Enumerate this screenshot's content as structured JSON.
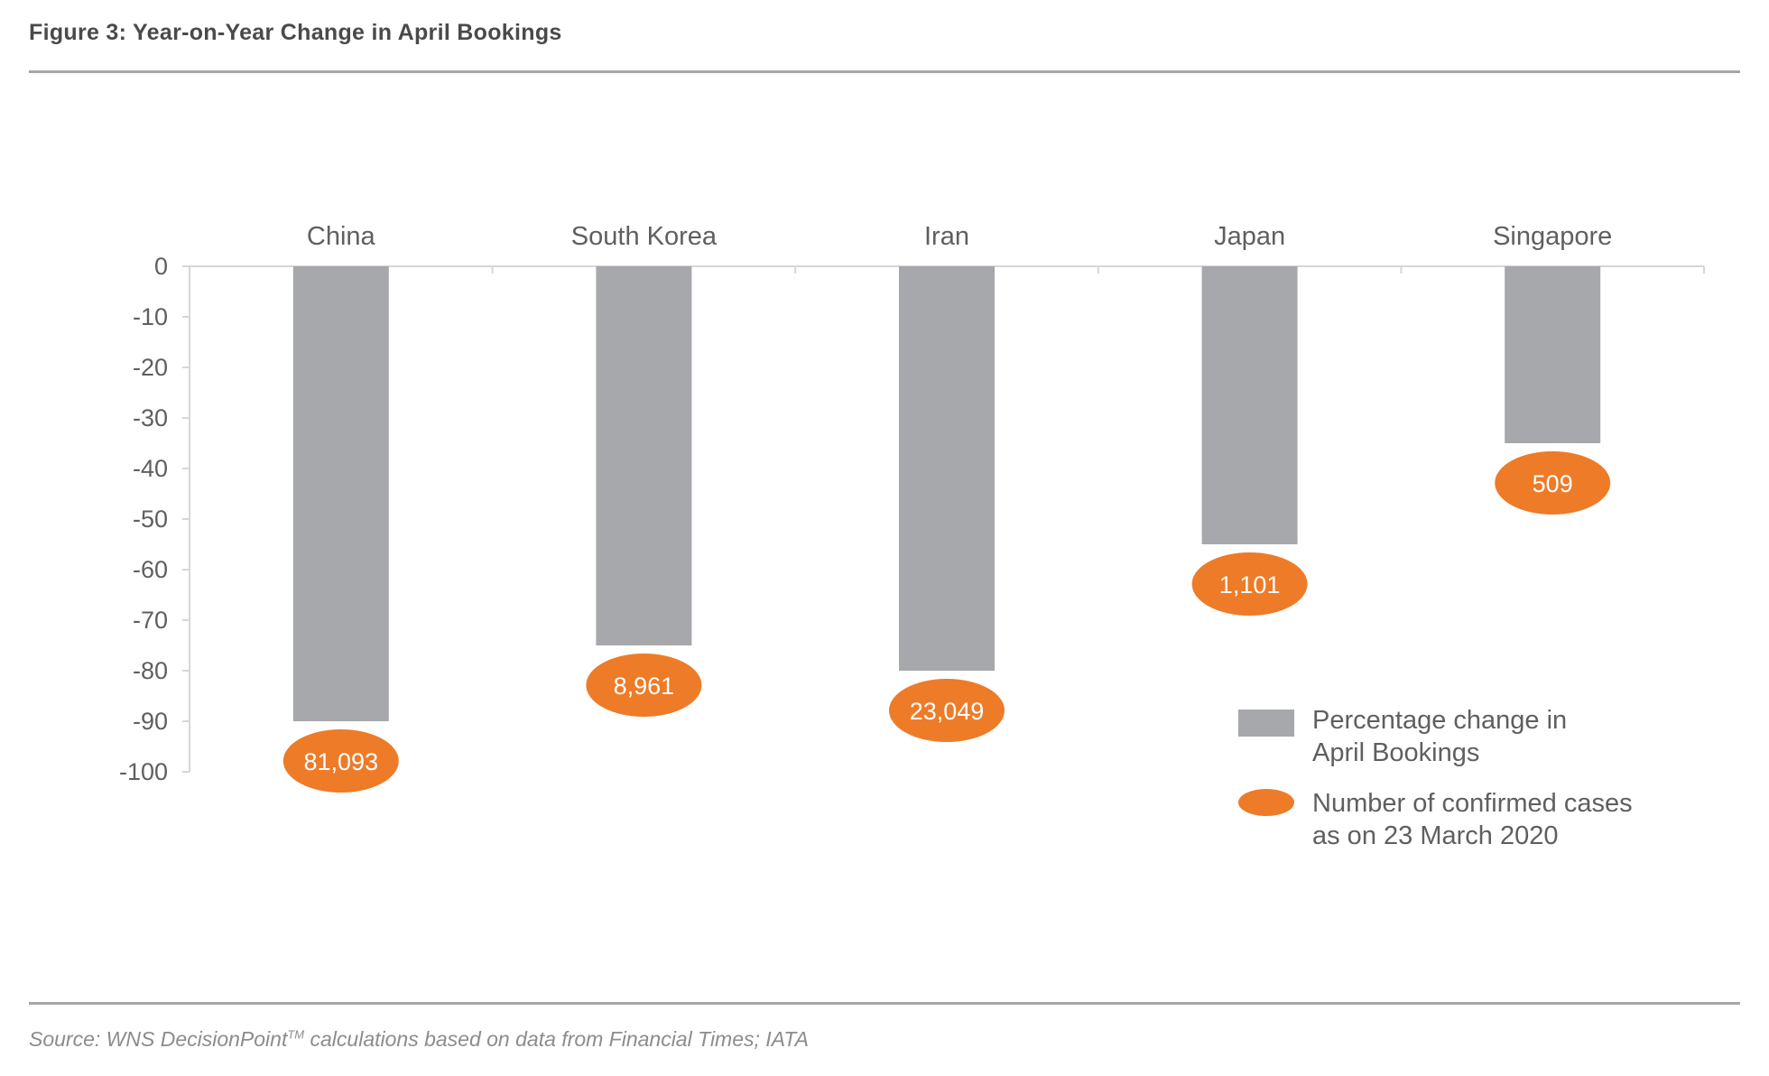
{
  "figure": {
    "title": "Figure 3: Year-on-Year Change in April Bookings",
    "source_prefix": "Source: WNS DecisionPoint",
    "source_tm": "TM",
    "source_suffix": " calculations based on data from Financial Times; IATA"
  },
  "colors": {
    "bar": "#a7a8ab",
    "bubble": "#ee7b27",
    "axis": "#d6d6d6",
    "rule": "#a6a6a6"
  },
  "chart_data": {
    "type": "bar",
    "title": "Figure 3: Year-on-Year Change in April Bookings",
    "xlabel": "",
    "ylabel": "",
    "categories": [
      "China",
      "South Korea",
      "Iran",
      "Japan",
      "Singapore"
    ],
    "ylim": [
      -100,
      0
    ],
    "yticks": [
      0,
      -10,
      -20,
      -30,
      -40,
      -50,
      -60,
      -70,
      -80,
      -90,
      -100
    ],
    "xaxis_position": "top",
    "grid": false,
    "legend_position": "bottom-right",
    "series": [
      {
        "name": "Percentage change in April Bookings",
        "legend_lines": [
          "Percentage change in",
          "April Bookings"
        ],
        "type": "bar",
        "values": [
          -90,
          -75,
          -80,
          -55,
          -35
        ]
      },
      {
        "name": "Number of confirmed cases as on 23 March 2020",
        "legend_lines": [
          "Number of confirmed cases",
          "as on 23 March 2020"
        ],
        "type": "annotation",
        "values": [
          81093,
          8961,
          23049,
          1101,
          509
        ],
        "labels": [
          "81,093",
          "8,961",
          "23,049",
          "1,101",
          "509"
        ]
      }
    ]
  }
}
